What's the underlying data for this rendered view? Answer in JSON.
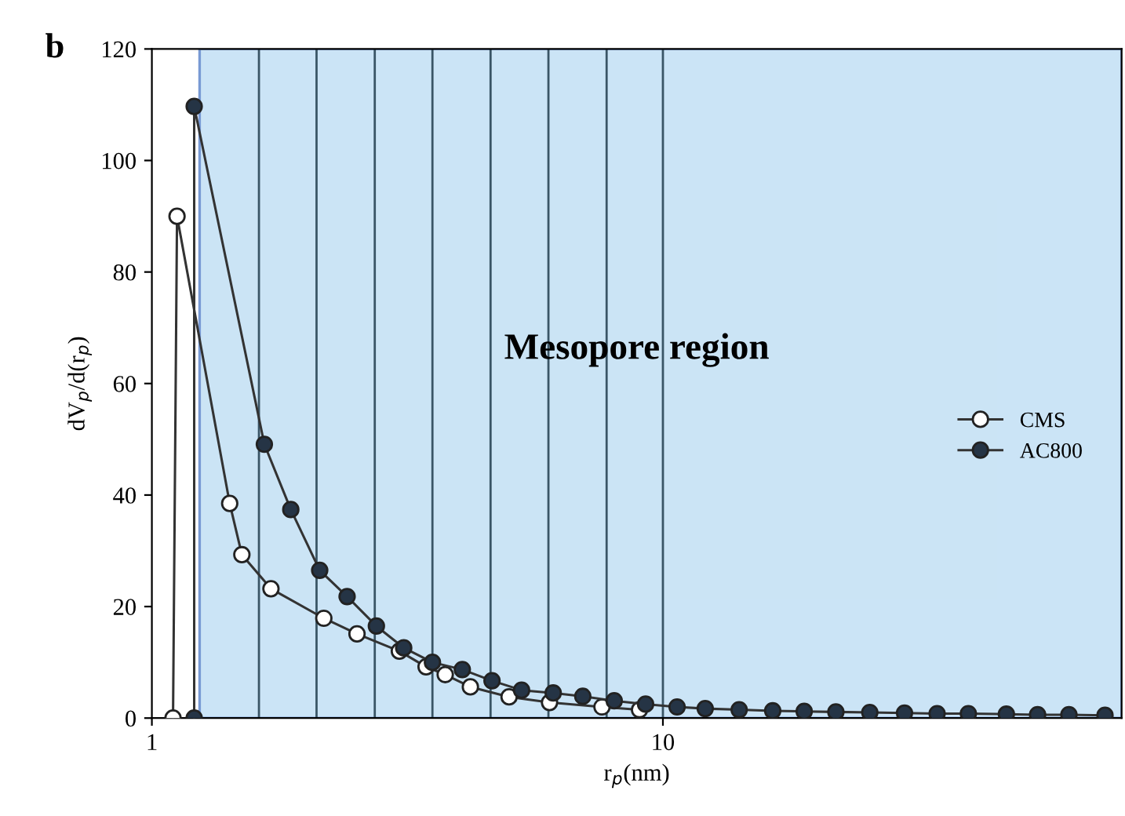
{
  "chart_data": {
    "type": "line",
    "xlabel": "r$_{p}$(nm)",
    "ylabel": "dV$_{p}$/d(r$_{p}$)",
    "annotations": [
      "b"
    ],
    "log": "x",
    "xlim": [
      1,
      79
    ],
    "xticks": [
      1,
      10
    ],
    "ylim": [
      0,
      120
    ],
    "yticks": [
      0,
      20,
      40,
      60,
      80,
      100,
      120
    ],
    "grid": false,
    "legend": "right",
    "marker": "circle",
    "line_style": "solid",
    "bands": [
      {
        "axis": "x",
        "from": 1.24,
        "to": 79,
        "label": "Mesopore region",
        "color": "#c6e2f5"
      }
    ],
    "ref_lines": [
      {
        "axis": "x",
        "value": 1.62,
        "color": "#3a5566"
      },
      {
        "axis": "x",
        "value": 2.1,
        "color": "#3a5566"
      },
      {
        "axis": "x",
        "value": 2.73,
        "color": "#3a5566"
      },
      {
        "axis": "x",
        "value": 3.54,
        "color": "#3a5566"
      },
      {
        "axis": "x",
        "value": 4.6,
        "color": "#3a5566"
      },
      {
        "axis": "x",
        "value": 5.97,
        "color": "#3a5566"
      },
      {
        "axis": "x",
        "value": 7.76,
        "color": "#3a5566"
      },
      {
        "axis": "x",
        "value": 10,
        "color": "#3a5566"
      }
    ],
    "series": [
      {
        "name": "CMS",
        "color": "#ffffff",
        "x": [
          1.1,
          1.12,
          1.42,
          1.5,
          1.71,
          2.17,
          2.52,
          3.05,
          3.44,
          3.75,
          4.2,
          5.0,
          6.0,
          7.6,
          9.0
        ],
        "values": [
          0,
          90,
          38.5,
          29.3,
          23.2,
          17.9,
          15.1,
          12.0,
          9.2,
          7.8,
          5.6,
          3.8,
          2.8,
          2.0,
          1.5
        ]
      },
      {
        "name": "AC800",
        "color": "#253445",
        "x": [
          1.21,
          1.21,
          1.66,
          1.87,
          2.13,
          2.41,
          2.75,
          3.11,
          3.54,
          4.05,
          4.63,
          5.29,
          6.1,
          6.97,
          8.03,
          9.25,
          10.66,
          12.1,
          14.1,
          16.4,
          18.9,
          21.8,
          25.4,
          29.7,
          34.4,
          39.6,
          47.0,
          54.1,
          62.3,
          73.3
        ],
        "values": [
          0,
          109.7,
          49.1,
          37.4,
          26.5,
          21.8,
          16.5,
          12.6,
          10.0,
          8.7,
          6.7,
          5.0,
          4.5,
          3.9,
          3.1,
          2.5,
          2.0,
          1.7,
          1.5,
          1.3,
          1.2,
          1.1,
          1.0,
          0.9,
          0.8,
          0.8,
          0.7,
          0.6,
          0.6,
          0.5
        ]
      }
    ]
  }
}
